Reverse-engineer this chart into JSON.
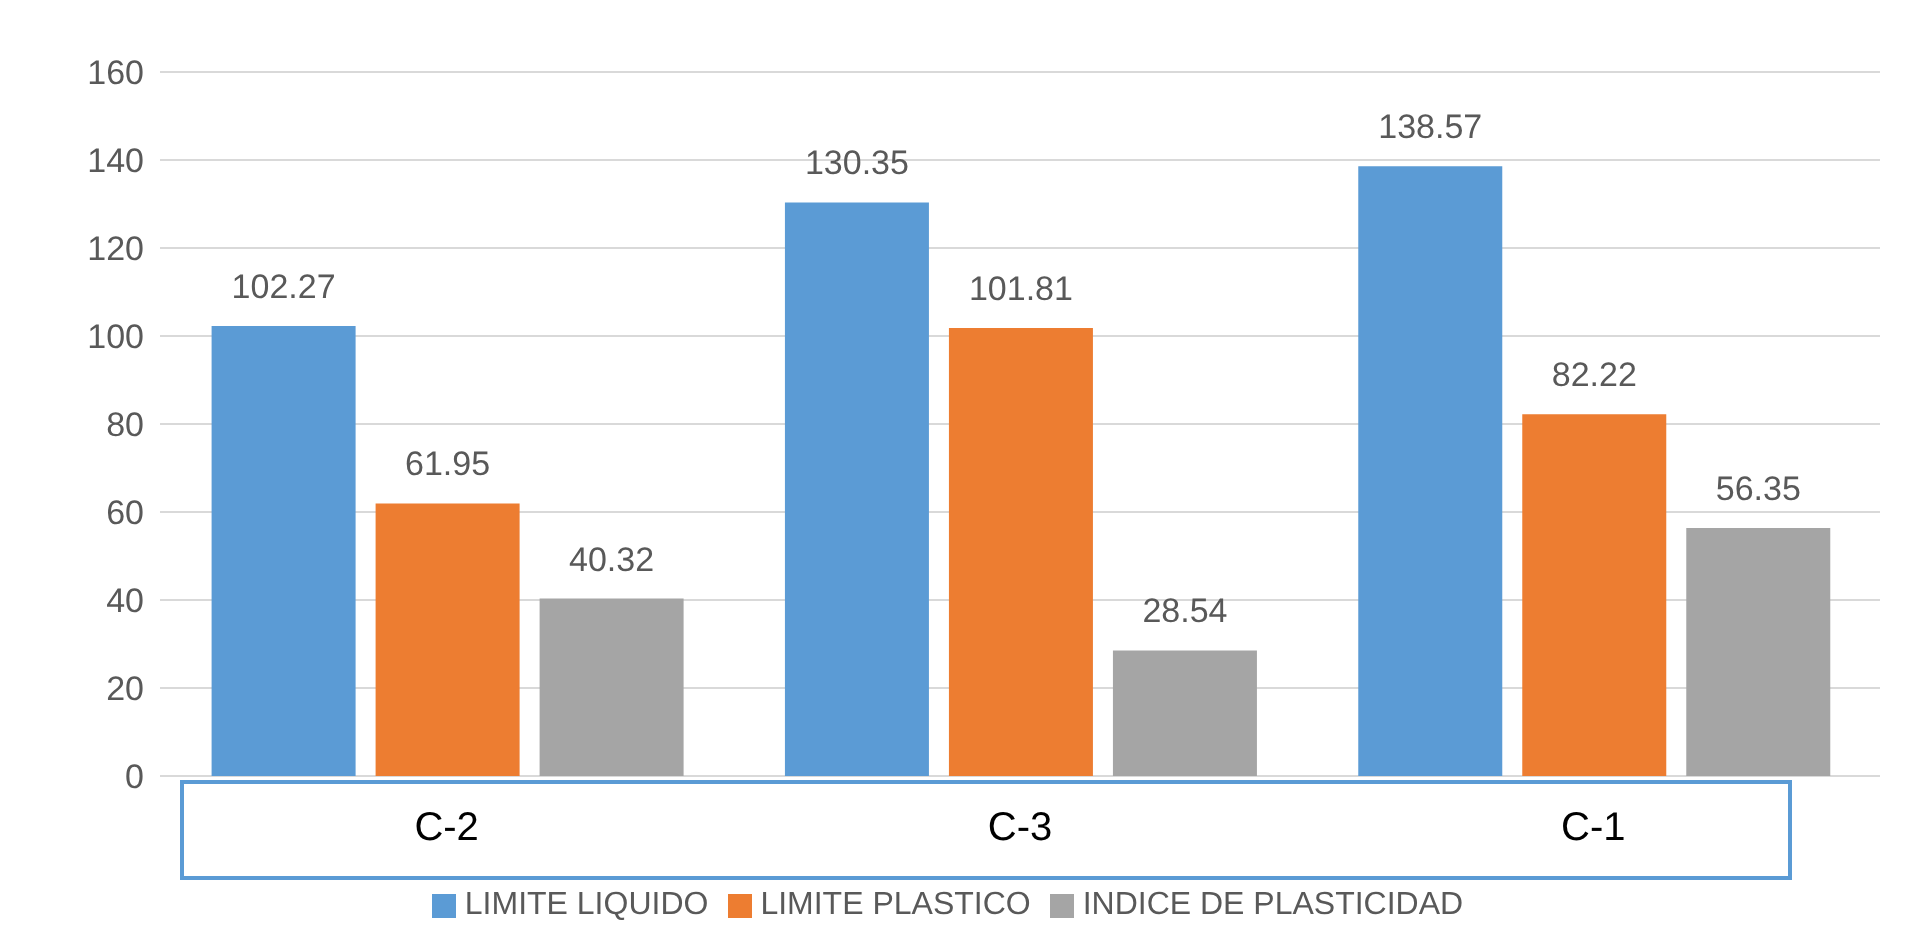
{
  "chart_data": {
    "type": "bar",
    "categories": [
      "C-2",
      "C-3",
      "C-1"
    ],
    "series": [
      {
        "name": "LIMITE LIQUIDO",
        "color": "#5b9bd5",
        "values": [
          102.27,
          130.35,
          138.57
        ]
      },
      {
        "name": "LIMITE PLASTICO",
        "color": "#ed7d31",
        "values": [
          61.95,
          101.81,
          82.22
        ]
      },
      {
        "name": "INDICE DE PLASTICIDAD",
        "color": "#a5a5a5",
        "values": [
          40.32,
          28.54,
          56.35
        ]
      }
    ],
    "ylim": [
      0,
      160
    ],
    "yticks": [
      0,
      20,
      40,
      60,
      80,
      100,
      120,
      140,
      160
    ],
    "grid": "y",
    "legend": "bottom",
    "data_labels": true
  }
}
